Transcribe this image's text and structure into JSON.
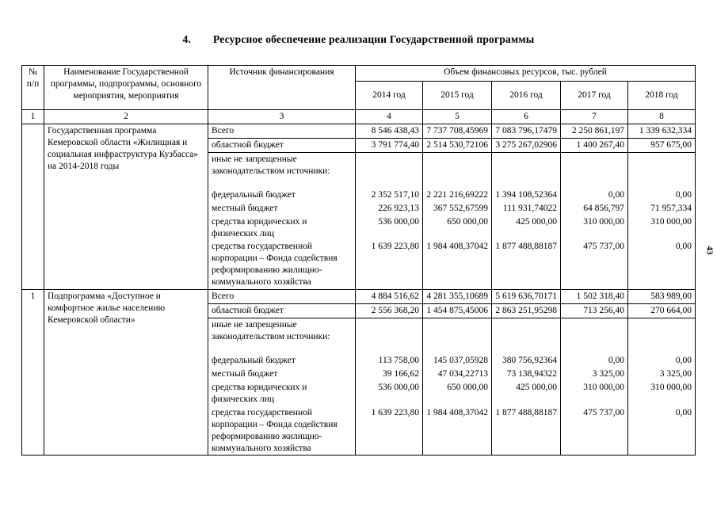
{
  "page": {
    "section_number": "4.",
    "title": "Ресурсное обеспечение реализации Государственной программы",
    "page_number": "43"
  },
  "table": {
    "headers": {
      "num": "№\nп/п",
      "name": "Наименование Государственной программы, подпрограммы, основного мероприятия, мероприятия",
      "source": "Источник финансирования",
      "volume": "Объем финансовых ресурсов, тыс. рублей",
      "years": [
        "2014 год",
        "2015 год",
        "2016 год",
        "2017 год",
        "2018 год"
      ]
    },
    "column_numbers": [
      "1",
      "2",
      "3",
      "4",
      "5",
      "6",
      "7",
      "8"
    ],
    "blocks": [
      {
        "num": "",
        "name": "Государственная программа Кемеровской области  «Жилищная и социальная инфраструктура Кузбасса» на 2014-2018 годы",
        "rows": [
          {
            "source": "Всего",
            "values": [
              "8 546 438,43",
              "7 737 708,45969",
              "7 083 796,17479",
              "2 250 861,197",
              "1 339 632,334"
            ]
          },
          {
            "source": "областной бюджет",
            "values": [
              "3 791 774,40",
              "2 514 530,72106",
              "3 275 267,02906",
              "1 400 267,40",
              "957 675,00"
            ]
          },
          {
            "source": "иные не запрещенные законодательством источники:",
            "values": [
              "",
              "",
              "",
              "",
              ""
            ]
          },
          {
            "source": "федеральный бюджет",
            "values": [
              "2 352 517,10",
              "2 221 216,69222",
              "1 394 108,52364",
              "0,00",
              "0,00"
            ]
          },
          {
            "source": "местный бюджет",
            "values": [
              "226 923,13",
              "367 552,67599",
              "111 931,74022",
              "64 856,797",
              "71 957,334"
            ]
          },
          {
            "source": "средства юридических и физических лиц",
            "values": [
              "536 000,00",
              "650 000,00",
              "425 000,00",
              "310 000,00",
              "310 000,00"
            ]
          },
          {
            "source": "средства государственной корпорации – Фонда содействия реформированию жилищно-коммунального хозяйства",
            "values": [
              "1 639 223,80",
              "1 984 408,37042",
              "1 877 488,88187",
              "475 737,00",
              "0,00"
            ]
          }
        ]
      },
      {
        "num": "1",
        "name": "Подпрограмма «Доступное и комфортное жилье населению Кемеровской области»",
        "rows": [
          {
            "source": "Всего",
            "values": [
              "4 884 516,62",
              "4 281 355,10689",
              "5 619 636,70171",
              "1 502 318,40",
              "583 989,00"
            ]
          },
          {
            "source": "областной бюджет",
            "values": [
              "2 556 368,20",
              "1 454 875,45006",
              "2 863 251,95298",
              "713 256,40",
              "270 664,00"
            ]
          },
          {
            "source": "иные не запрещенные законодательством источники:",
            "values": [
              "",
              "",
              "",
              "",
              ""
            ]
          },
          {
            "source": "федеральный бюджет",
            "values": [
              "113 758,00",
              "145 037,05928",
              "380 756,92364",
              "0,00",
              "0,00"
            ]
          },
          {
            "source": "местный бюджет",
            "values": [
              "39 166,62",
              "47 034,22713",
              "73 138,94322",
              "3 325,00",
              "3 325,00"
            ]
          },
          {
            "source": "средства юридических и физических лиц",
            "values": [
              "536 000,00",
              "650 000,00",
              "425 000,00",
              "310 000,00",
              "310 000,00"
            ]
          },
          {
            "source": "средства государственной корпорации – Фонда содействия реформированию жилищно-коммунального хозяйства",
            "values": [
              "1 639 223,80",
              "1 984 408,37042",
              "1 877 488,88187",
              "475 737,00",
              "0,00"
            ]
          }
        ]
      }
    ]
  }
}
